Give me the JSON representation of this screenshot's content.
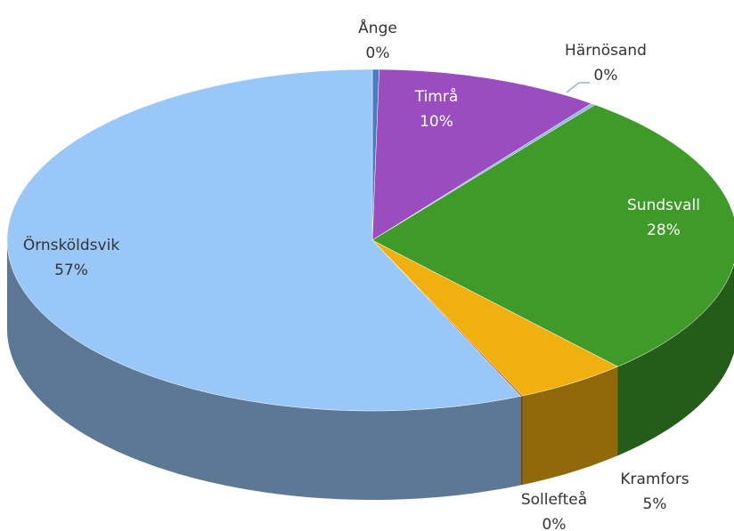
{
  "chart_data": {
    "type": "pie",
    "categories": [
      "Ånge",
      "Timrå",
      "Härnösand",
      "Sundsvall",
      "Kramfors",
      "Sollefteå",
      "Örnsköldsvik"
    ],
    "values": [
      0.3,
      10,
      0.2,
      28,
      5,
      0.1,
      57
    ],
    "value_labels": [
      "0%",
      "10%",
      "0%",
      "28%",
      "5%",
      "0%",
      "57%"
    ],
    "colors": [
      "#4a7cc4",
      "#9b4dbf",
      "#8fb4e0",
      "#3f9a2a",
      "#f0b010",
      "#c0703a",
      "#99c8f8"
    ]
  }
}
